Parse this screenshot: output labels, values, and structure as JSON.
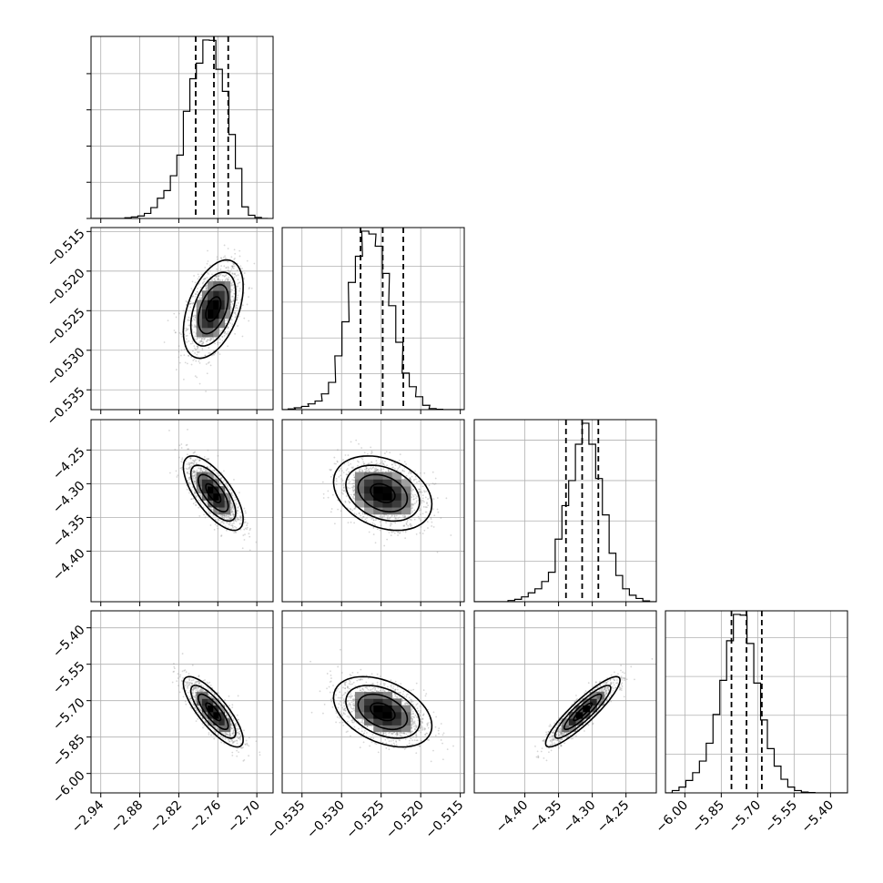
{
  "chart_data": {
    "type": "corner",
    "title": "",
    "parameters": [
      {
        "range": [
          -2.955,
          -2.675
        ],
        "ticks": [
          -2.94,
          -2.88,
          -2.82,
          -2.76,
          -2.7
        ],
        "tick_labels": [
          "−2.94",
          "−2.88",
          "−2.82",
          "−2.76",
          "−2.70"
        ],
        "quantiles": [
          -2.794,
          -2.766,
          -2.744
        ],
        "mean": -2.767,
        "sd": 0.02,
        "hist_x": [
          -2.948,
          -2.938,
          -2.928,
          -2.918,
          -2.908,
          -2.898,
          -2.888,
          -2.878,
          -2.868,
          -2.858,
          -2.848,
          -2.838,
          -2.828,
          -2.818,
          -2.808,
          -2.798,
          -2.788,
          -2.778,
          -2.768,
          -2.758,
          -2.748,
          -2.738,
          -2.728,
          -2.718,
          -2.708,
          -2.698,
          -2.688
        ],
        "hist_y": [
          0,
          0,
          0,
          0,
          0,
          2,
          4,
          7,
          14,
          30,
          56,
          77,
          118,
          175,
          296,
          386,
          429,
          493,
          492,
          412,
          351,
          232,
          138,
          32,
          9,
          3,
          0
        ]
      },
      {
        "range": [
          -0.5375,
          -0.5145
        ],
        "ticks": [
          -0.535,
          -0.53,
          -0.525,
          -0.52,
          -0.515
        ],
        "tick_labels": [
          "−0.535",
          "−0.530",
          "−0.525",
          "−0.520",
          "−0.515"
        ],
        "quantiles": [
          -0.5276,
          -0.5248,
          -0.5222
        ],
        "mean": -0.5248,
        "sd": 0.0027,
        "hist_x": [
          -0.5372,
          -0.5363,
          -0.5355,
          -0.5346,
          -0.5338,
          -0.5329,
          -0.5321,
          -0.5312,
          -0.5304,
          -0.5295,
          -0.5287,
          -0.5278,
          -0.527,
          -0.5261,
          -0.5253,
          -0.5244,
          -0.5236,
          -0.5227,
          -0.5219,
          -0.521,
          -0.5202,
          -0.5193,
          -0.5185,
          -0.5176,
          -0.5168,
          -0.5159,
          -0.5151
        ],
        "hist_y": [
          0,
          2,
          5,
          9,
          16,
          24,
          44,
          76,
          150,
          245,
          355,
          428,
          498,
          490,
          456,
          380,
          290,
          188,
          102,
          64,
          36,
          12,
          3,
          1,
          0,
          0,
          0
        ]
      },
      {
        "range": [
          -4.475,
          -4.205
        ],
        "ticks": [
          -4.4,
          -4.35,
          -4.3,
          -4.25
        ],
        "tick_labels": [
          "−4.40",
          "−4.35",
          "−4.30",
          "−4.25"
        ],
        "quantiles": [
          -4.339,
          -4.315,
          -4.291
        ],
        "mean": -4.314,
        "sd": 0.024,
        "hist_x": [
          -4.47,
          -4.46,
          -4.45,
          -4.44,
          -4.43,
          -4.42,
          -4.41,
          -4.4,
          -4.39,
          -4.38,
          -4.37,
          -4.36,
          -4.35,
          -4.34,
          -4.33,
          -4.32,
          -4.31,
          -4.3,
          -4.29,
          -4.28,
          -4.27,
          -4.26,
          -4.25,
          -4.24,
          -4.23,
          -4.22,
          -4.21
        ],
        "hist_y": [
          0,
          0,
          0,
          0,
          0,
          3,
          6,
          12,
          22,
          32,
          50,
          73,
          155,
          238,
          300,
          390,
          442,
          390,
          305,
          215,
          120,
          65,
          32,
          16,
          8,
          2,
          0
        ]
      },
      {
        "range": [
          -6.08,
          -5.33
        ],
        "ticks": [
          -6.0,
          -5.85,
          -5.7,
          -5.55,
          -5.4
        ],
        "tick_labels": [
          "−6.00",
          "−5.85",
          "−5.70",
          "−5.55",
          "−5.40"
        ],
        "quantiles": [
          -5.808,
          -5.746,
          -5.683
        ],
        "mean": -5.746,
        "sd": 0.063,
        "hist_x": [
          -6.066,
          -6.038,
          -6.01,
          -5.982,
          -5.954,
          -5.926,
          -5.898,
          -5.87,
          -5.842,
          -5.814,
          -5.786,
          -5.758,
          -5.73,
          -5.702,
          -5.674,
          -5.646,
          -5.618,
          -5.59,
          -5.562,
          -5.534,
          -5.506,
          -5.478,
          -5.45,
          -5.422,
          -5.394,
          -5.366,
          -5.338
        ],
        "hist_y": [
          0,
          6,
          15,
          32,
          52,
          82,
          128,
          202,
          290,
          392,
          460,
          458,
          385,
          283,
          188,
          114,
          69,
          35,
          15,
          6,
          2,
          1,
          0,
          0,
          0,
          0,
          0
        ]
      }
    ],
    "correlations": [
      [
        1.0,
        0.45,
        -0.7,
        -0.8
      ],
      [
        0.45,
        1.0,
        -0.3,
        -0.4
      ],
      [
        -0.7,
        -0.3,
        1.0,
        0.9
      ],
      [
        -0.8,
        -0.4,
        0.9,
        1.0
      ]
    ],
    "contour_levels_sigma": [
      0.5,
      1.0,
      1.5,
      2.0
    ],
    "grid": true,
    "colors": {
      "axes": "#000000",
      "grid": "#b0b0b0",
      "points": "#8c8c8c",
      "line": "#000000"
    }
  }
}
